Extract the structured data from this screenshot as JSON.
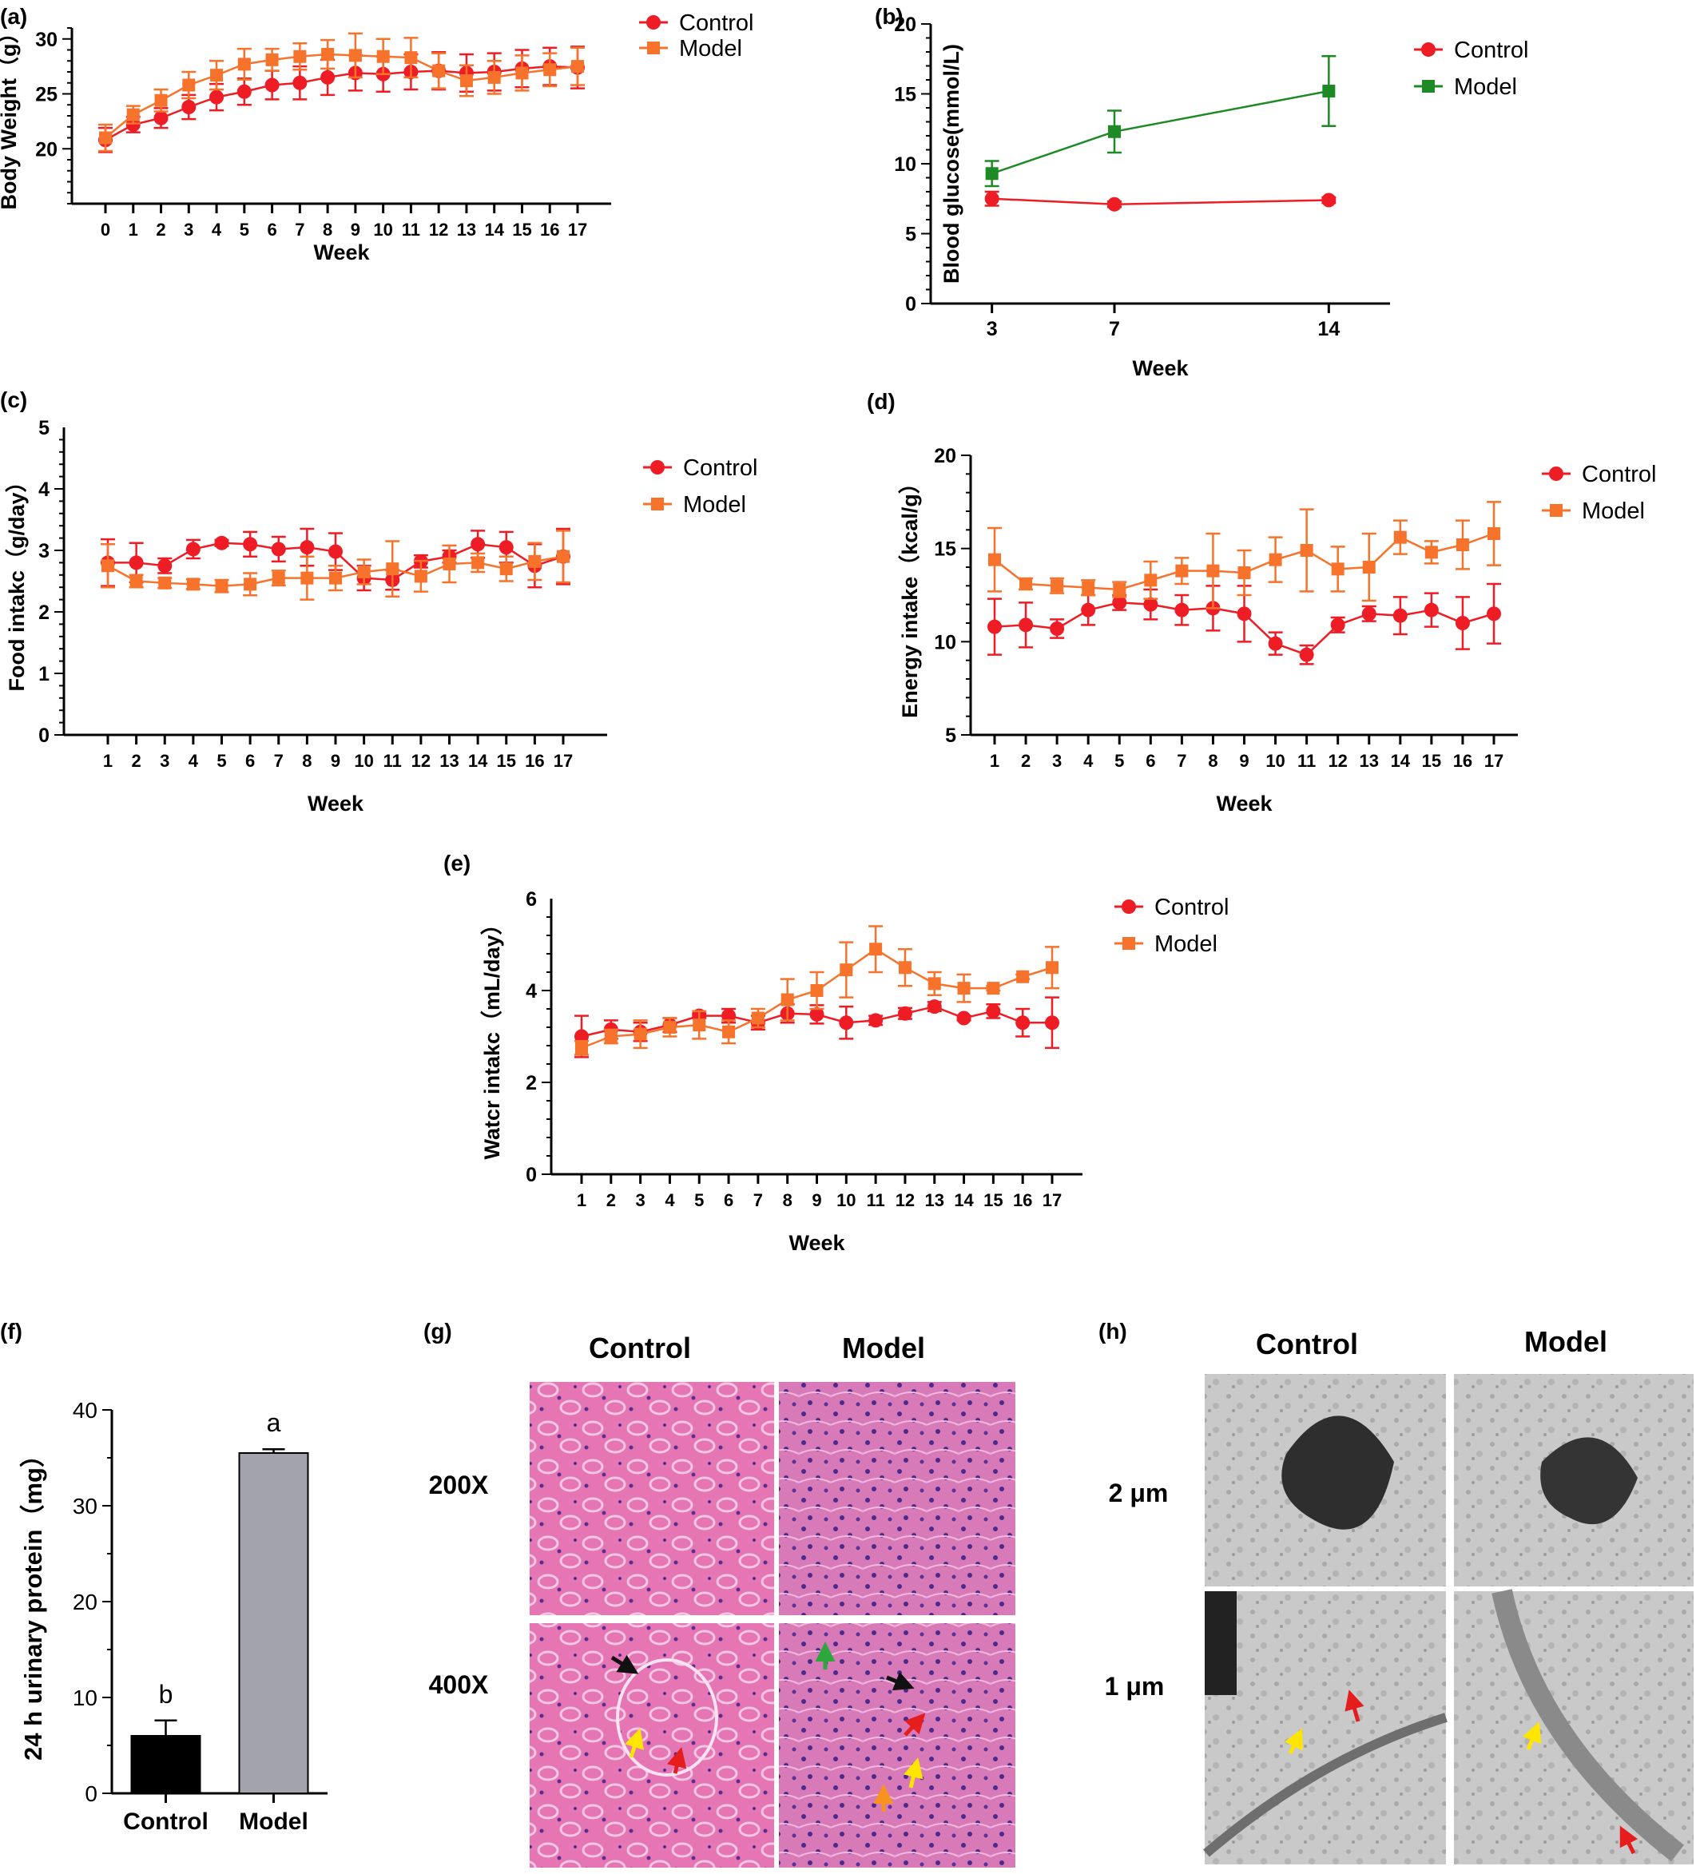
{
  "panel_labels": {
    "a": "(a)",
    "b": "(b)",
    "c": "(c)",
    "d": "(d)",
    "e": "(e)",
    "f": "(f)",
    "g": "(g)",
    "h": "(h)"
  },
  "colors": {
    "control": "#ee1c24",
    "model_orange": "#f7722a",
    "model_green": "#1e8a26",
    "bar_control": "#000000",
    "bar_model": "#a3a3ae"
  },
  "chart_data": [
    {
      "id": "a",
      "type": "line",
      "title": "",
      "xlabel": "Week",
      "ylabel": "Body Weight（g）",
      "x": [
        0,
        1,
        2,
        3,
        4,
        5,
        6,
        7,
        8,
        9,
        10,
        11,
        12,
        13,
        14,
        15,
        16,
        17
      ],
      "xticks": [
        "0",
        "1",
        "2",
        "3",
        "4",
        "5",
        "6",
        "7",
        "8",
        "9",
        "10",
        "11",
        "12",
        "13",
        "14",
        "15",
        "16",
        "17"
      ],
      "ylim": [
        15,
        31
      ],
      "yticks": [
        20,
        25,
        30
      ],
      "yticklabels": [
        "20",
        "25",
        "30"
      ],
      "legend_position": "top-right",
      "series": [
        {
          "name": "Control",
          "marker": "circle",
          "color": "#ee1c24",
          "values": [
            20.8,
            22.2,
            22.8,
            23.8,
            24.7,
            25.2,
            25.8,
            26.0,
            26.5,
            26.9,
            26.8,
            27.0,
            27.1,
            26.9,
            27.0,
            27.3,
            27.5,
            27.4
          ],
          "errors": [
            1.1,
            0.7,
            0.9,
            1.1,
            1.2,
            1.2,
            1.3,
            1.5,
            1.6,
            1.6,
            1.6,
            1.6,
            1.7,
            1.7,
            1.7,
            1.7,
            1.7,
            1.9
          ]
        },
        {
          "name": "Model",
          "marker": "square",
          "color": "#f7722a",
          "values": [
            21.0,
            23.1,
            24.4,
            25.8,
            26.7,
            27.7,
            28.1,
            28.4,
            28.6,
            28.5,
            28.4,
            28.3,
            27.1,
            26.2,
            26.5,
            26.9,
            27.2,
            27.5
          ],
          "errors": [
            1.2,
            0.8,
            1.0,
            1.2,
            1.3,
            1.4,
            1.0,
            1.2,
            1.3,
            2.0,
            1.6,
            1.8,
            1.6,
            1.4,
            1.5,
            1.6,
            1.5,
            1.7
          ]
        }
      ]
    },
    {
      "id": "b",
      "type": "line",
      "title": "",
      "xlabel": "Week",
      "ylabel": "Blood glucose(mmol/L)",
      "x": [
        3,
        7,
        14
      ],
      "xticks": [
        "3",
        "7",
        "14"
      ],
      "ylim": [
        0,
        20
      ],
      "yticks": [
        0,
        5,
        10,
        15,
        20
      ],
      "yticklabels": [
        "0",
        "5",
        "10",
        "15",
        "20"
      ],
      "legend_position": "top-right",
      "series": [
        {
          "name": "Control",
          "marker": "circle",
          "color": "#ee1c24",
          "values": [
            7.5,
            7.1,
            7.4
          ],
          "errors": [
            0.5,
            0.2,
            0.2
          ]
        },
        {
          "name": "Model",
          "marker": "square",
          "color": "#1e8a26",
          "values": [
            9.3,
            12.3,
            15.2
          ],
          "errors": [
            0.9,
            1.5,
            2.5
          ]
        }
      ]
    },
    {
      "id": "c",
      "type": "line",
      "title": "",
      "xlabel": "Week",
      "ylabel": "Food intakc（g/day）",
      "x": [
        1,
        2,
        3,
        4,
        5,
        6,
        7,
        8,
        9,
        10,
        11,
        12,
        13,
        14,
        15,
        16,
        17
      ],
      "xticks": [
        "1",
        "2",
        "3",
        "4",
        "5",
        "6",
        "7",
        "8",
        "9",
        "10",
        "11",
        "12",
        "13",
        "14",
        "15",
        "16",
        "17"
      ],
      "ylim": [
        0,
        5
      ],
      "yticks": [
        0,
        1,
        2,
        3,
        4,
        5
      ],
      "yticklabels": [
        "0",
        "1",
        "2",
        "3",
        "4",
        "5"
      ],
      "legend_position": "right",
      "series": [
        {
          "name": "Control",
          "marker": "circle",
          "color": "#ee1c24",
          "values": [
            2.8,
            2.8,
            2.75,
            3.02,
            3.12,
            3.1,
            3.02,
            3.05,
            2.98,
            2.55,
            2.52,
            2.82,
            2.9,
            3.1,
            3.05,
            2.75,
            2.9
          ],
          "errors": [
            0.38,
            0.32,
            0.12,
            0.15,
            0.05,
            0.2,
            0.2,
            0.3,
            0.3,
            0.2,
            0.16,
            0.1,
            0.1,
            0.22,
            0.25,
            0.35,
            0.45
          ]
        },
        {
          "name": "Model",
          "marker": "square",
          "color": "#f7722a",
          "values": [
            2.75,
            2.5,
            2.47,
            2.45,
            2.42,
            2.45,
            2.55,
            2.55,
            2.55,
            2.65,
            2.7,
            2.58,
            2.78,
            2.8,
            2.7,
            2.82,
            2.9
          ],
          "errors": [
            0.35,
            0.1,
            0.08,
            0.08,
            0.1,
            0.18,
            0.12,
            0.35,
            0.2,
            0.2,
            0.45,
            0.25,
            0.3,
            0.15,
            0.2,
            0.3,
            0.42
          ]
        }
      ]
    },
    {
      "id": "d",
      "type": "line",
      "title": "",
      "xlabel": "Week",
      "ylabel": "Energy intake（kcal/g）",
      "x": [
        1,
        2,
        3,
        4,
        5,
        6,
        7,
        8,
        9,
        10,
        11,
        12,
        13,
        14,
        15,
        16,
        17
      ],
      "xticks": [
        "1",
        "2",
        "3",
        "4",
        "5",
        "6",
        "7",
        "8",
        "9",
        "10",
        "11",
        "12",
        "13",
        "14",
        "15",
        "16",
        "17"
      ],
      "ylim": [
        5,
        20
      ],
      "yticks": [
        5,
        10,
        15,
        20
      ],
      "yticklabels": [
        "5",
        "10",
        "15",
        "20"
      ],
      "legend_position": "right",
      "series": [
        {
          "name": "Control",
          "marker": "circle",
          "color": "#ee1c24",
          "values": [
            10.8,
            10.9,
            10.7,
            11.7,
            12.1,
            12.0,
            11.7,
            11.8,
            11.5,
            9.9,
            9.3,
            10.9,
            11.5,
            11.4,
            11.7,
            11.0,
            11.5
          ],
          "errors": [
            1.5,
            1.2,
            0.5,
            0.8,
            0.4,
            0.8,
            0.8,
            1.2,
            1.5,
            0.6,
            0.5,
            0.4,
            0.4,
            1.0,
            0.9,
            1.4,
            1.6
          ]
        },
        {
          "name": "Model",
          "marker": "square",
          "color": "#f7722a",
          "values": [
            14.4,
            13.1,
            13.0,
            12.9,
            12.8,
            13.3,
            13.8,
            13.8,
            13.7,
            14.4,
            14.9,
            13.9,
            14.0,
            15.6,
            14.8,
            15.2,
            15.8
          ],
          "errors": [
            1.7,
            0.3,
            0.4,
            0.4,
            0.4,
            1.0,
            0.7,
            2.0,
            1.2,
            1.2,
            2.2,
            1.2,
            1.8,
            0.9,
            0.6,
            1.3,
            1.7
          ]
        }
      ]
    },
    {
      "id": "e",
      "type": "line",
      "title": "",
      "xlabel": "Week",
      "ylabel": "Watcr intakc（mL/day）",
      "x": [
        1,
        2,
        3,
        4,
        5,
        6,
        7,
        8,
        9,
        10,
        11,
        12,
        13,
        14,
        15,
        16,
        17
      ],
      "xticks": [
        "1",
        "2",
        "3",
        "4",
        "5",
        "6",
        "7",
        "8",
        "9",
        "10",
        "11",
        "12",
        "13",
        "14",
        "15",
        "16",
        "17"
      ],
      "ylim": [
        0,
        6
      ],
      "yticks": [
        0,
        2,
        4,
        6
      ],
      "yticklabels": [
        "0",
        "2",
        "4",
        "6"
      ],
      "legend_position": "right",
      "series": [
        {
          "name": "Control",
          "marker": "circle",
          "color": "#ee1c24",
          "values": [
            3.0,
            3.15,
            3.1,
            3.25,
            3.45,
            3.45,
            3.3,
            3.5,
            3.48,
            3.3,
            3.35,
            3.5,
            3.65,
            3.4,
            3.55,
            3.3,
            3.3
          ],
          "errors": [
            0.45,
            0.2,
            0.2,
            0.15,
            0.05,
            0.15,
            0.15,
            0.2,
            0.2,
            0.35,
            0.1,
            0.12,
            0.1,
            0.05,
            0.15,
            0.3,
            0.55
          ]
        },
        {
          "name": "Model",
          "marker": "square",
          "color": "#f7722a",
          "values": [
            2.75,
            3.0,
            3.05,
            3.2,
            3.25,
            3.1,
            3.4,
            3.8,
            4.0,
            4.45,
            4.9,
            4.5,
            4.15,
            4.05,
            4.05,
            4.3,
            4.5
          ],
          "errors": [
            0.15,
            0.15,
            0.3,
            0.2,
            0.3,
            0.25,
            0.2,
            0.45,
            0.4,
            0.6,
            0.5,
            0.4,
            0.25,
            0.3,
            0.05,
            0.05,
            0.45
          ]
        }
      ]
    },
    {
      "id": "f",
      "type": "bar",
      "title": "",
      "xlabel": "",
      "ylabel": "24 h urinary protein（mg）",
      "categories": [
        "Control",
        "Model"
      ],
      "values": [
        6.0,
        35.5
      ],
      "errors": [
        1.6,
        0.4
      ],
      "significance": [
        "b",
        "a"
      ],
      "ylim": [
        0,
        40
      ],
      "yticks": [
        0,
        10,
        20,
        30,
        40
      ],
      "yticklabels": [
        "0",
        "10",
        "20",
        "30",
        "40"
      ],
      "colors": [
        "#000000",
        "#a3a3ae"
      ]
    }
  ],
  "micrographs": {
    "g": {
      "col_labels": [
        "Control",
        "Model"
      ],
      "row_labels": [
        "200X",
        "400X"
      ]
    },
    "h": {
      "col_labels": [
        "Control",
        "Model"
      ],
      "row_labels": [
        "2 μm",
        "1 μm"
      ]
    }
  }
}
